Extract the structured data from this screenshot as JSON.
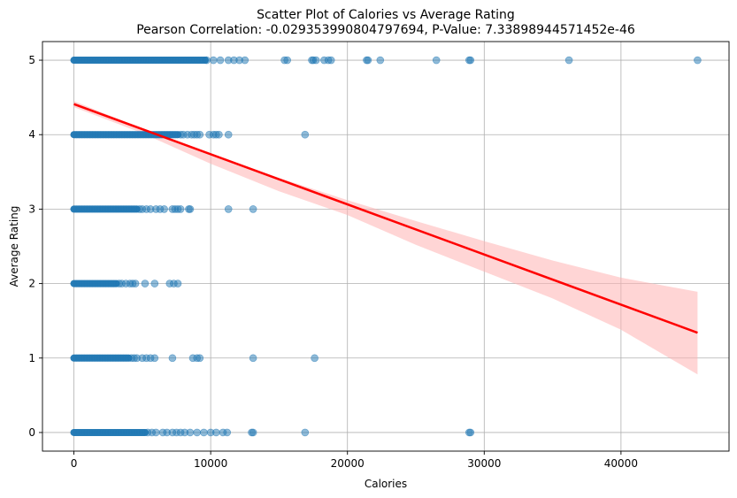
{
  "chart_data": {
    "type": "scatter",
    "title": "Scatter Plot of Calories vs Average Rating",
    "subtitle": "Pearson Correlation: -0.029353990804797694, P-Value: 7.33898944571452e-46",
    "xlabel": "Calories",
    "ylabel": "Average Rating",
    "xlim": [
      -2300,
      47900
    ],
    "ylim": [
      -0.25,
      5.25
    ],
    "xticks": [
      0,
      10000,
      20000,
      30000,
      40000
    ],
    "xtick_labels": [
      "0",
      "10000",
      "20000",
      "30000",
      "40000"
    ],
    "yticks": [
      0,
      1,
      2,
      3,
      4,
      5
    ],
    "ytick_labels": [
      "0",
      "1",
      "2",
      "3",
      "4",
      "5"
    ],
    "grid": true,
    "colors": {
      "points": "#1f77b4",
      "regression": "#ff0000",
      "band": "#ffb3b3",
      "grid": "#b0b0b0"
    },
    "point_opacity": 0.5,
    "regression": {
      "x": [
        0,
        45600
      ],
      "y": [
        4.41,
        1.34
      ]
    },
    "confidence_band": {
      "x": [
        0,
        5000,
        10000,
        15000,
        20000,
        25000,
        30000,
        35000,
        40000,
        45600
      ],
      "upper": [
        4.45,
        4.08,
        3.75,
        3.42,
        3.12,
        2.84,
        2.57,
        2.31,
        2.08,
        1.89
      ],
      "lower": [
        4.37,
        4.02,
        3.61,
        3.24,
        2.92,
        2.52,
        2.16,
        1.8,
        1.38,
        0.78
      ]
    },
    "series": [
      {
        "y": 5,
        "dense_until": 9600,
        "x": [
          9700,
          10200,
          10700,
          11300,
          11700,
          12100,
          12500,
          15400,
          15600,
          17400,
          17500,
          17700,
          18300,
          18600,
          18800,
          21400,
          21500,
          22400,
          26500,
          28900,
          29000,
          36200,
          45600
        ]
      },
      {
        "y": 4,
        "dense_until": 7600,
        "x": [
          7800,
          8000,
          8300,
          8600,
          8800,
          9000,
          9200,
          9900,
          10200,
          10400,
          10600,
          11300,
          16900
        ]
      },
      {
        "y": 3,
        "dense_until": 4600,
        "x": [
          4800,
          5000,
          5300,
          5600,
          6000,
          6300,
          6600,
          7200,
          7400,
          7600,
          7800,
          8400,
          8500,
          11300,
          13100
        ]
      },
      {
        "y": 2,
        "dense_until": 3100,
        "x": [
          3300,
          3500,
          3800,
          4100,
          4300,
          4500,
          5200,
          5900,
          7000,
          7300,
          7600
        ]
      },
      {
        "y": 1,
        "dense_until": 4000,
        "x": [
          4200,
          4400,
          4600,
          5000,
          5300,
          5600,
          5900,
          7200,
          8700,
          9000,
          9200,
          13100,
          17600
        ]
      },
      {
        "y": 0,
        "dense_until": 5200,
        "x": [
          5400,
          5700,
          6000,
          6500,
          6800,
          7200,
          7500,
          7800,
          8100,
          8500,
          9000,
          9500,
          10000,
          10400,
          10900,
          11200,
          13000,
          13100,
          16900,
          28900,
          29000
        ]
      }
    ]
  }
}
